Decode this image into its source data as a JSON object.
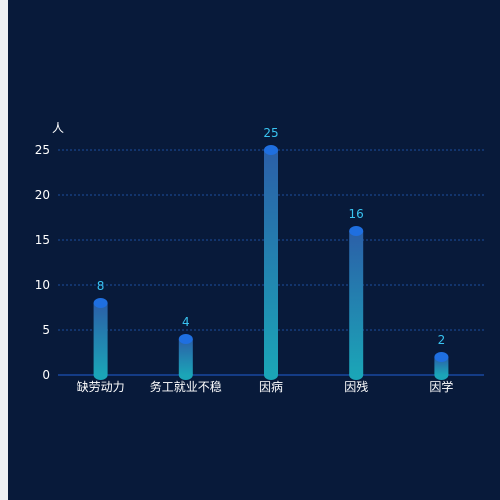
{
  "chart_data": {
    "type": "bar",
    "title": "",
    "xlabel": "",
    "ylabel": "人",
    "categories": [
      "缺劳动力",
      "务工就业不稳",
      "因病",
      "因残",
      "因学"
    ],
    "values": [
      8,
      4,
      25,
      16,
      2
    ],
    "ylim": [
      0,
      25
    ],
    "yticks": [
      0,
      5,
      10,
      15,
      20,
      25
    ],
    "grid": true,
    "legend": "none",
    "colors": {
      "background": "#081a3a",
      "gridline": "#1d4f9e",
      "axis_line": "#1f5fd1",
      "bar_top": "#2b5fa8",
      "bar_bottom": "#1ba5b7",
      "bar_cap": "#1f6fe0",
      "data_label": "#39c3f0",
      "tick_text": "#ffffff"
    }
  }
}
